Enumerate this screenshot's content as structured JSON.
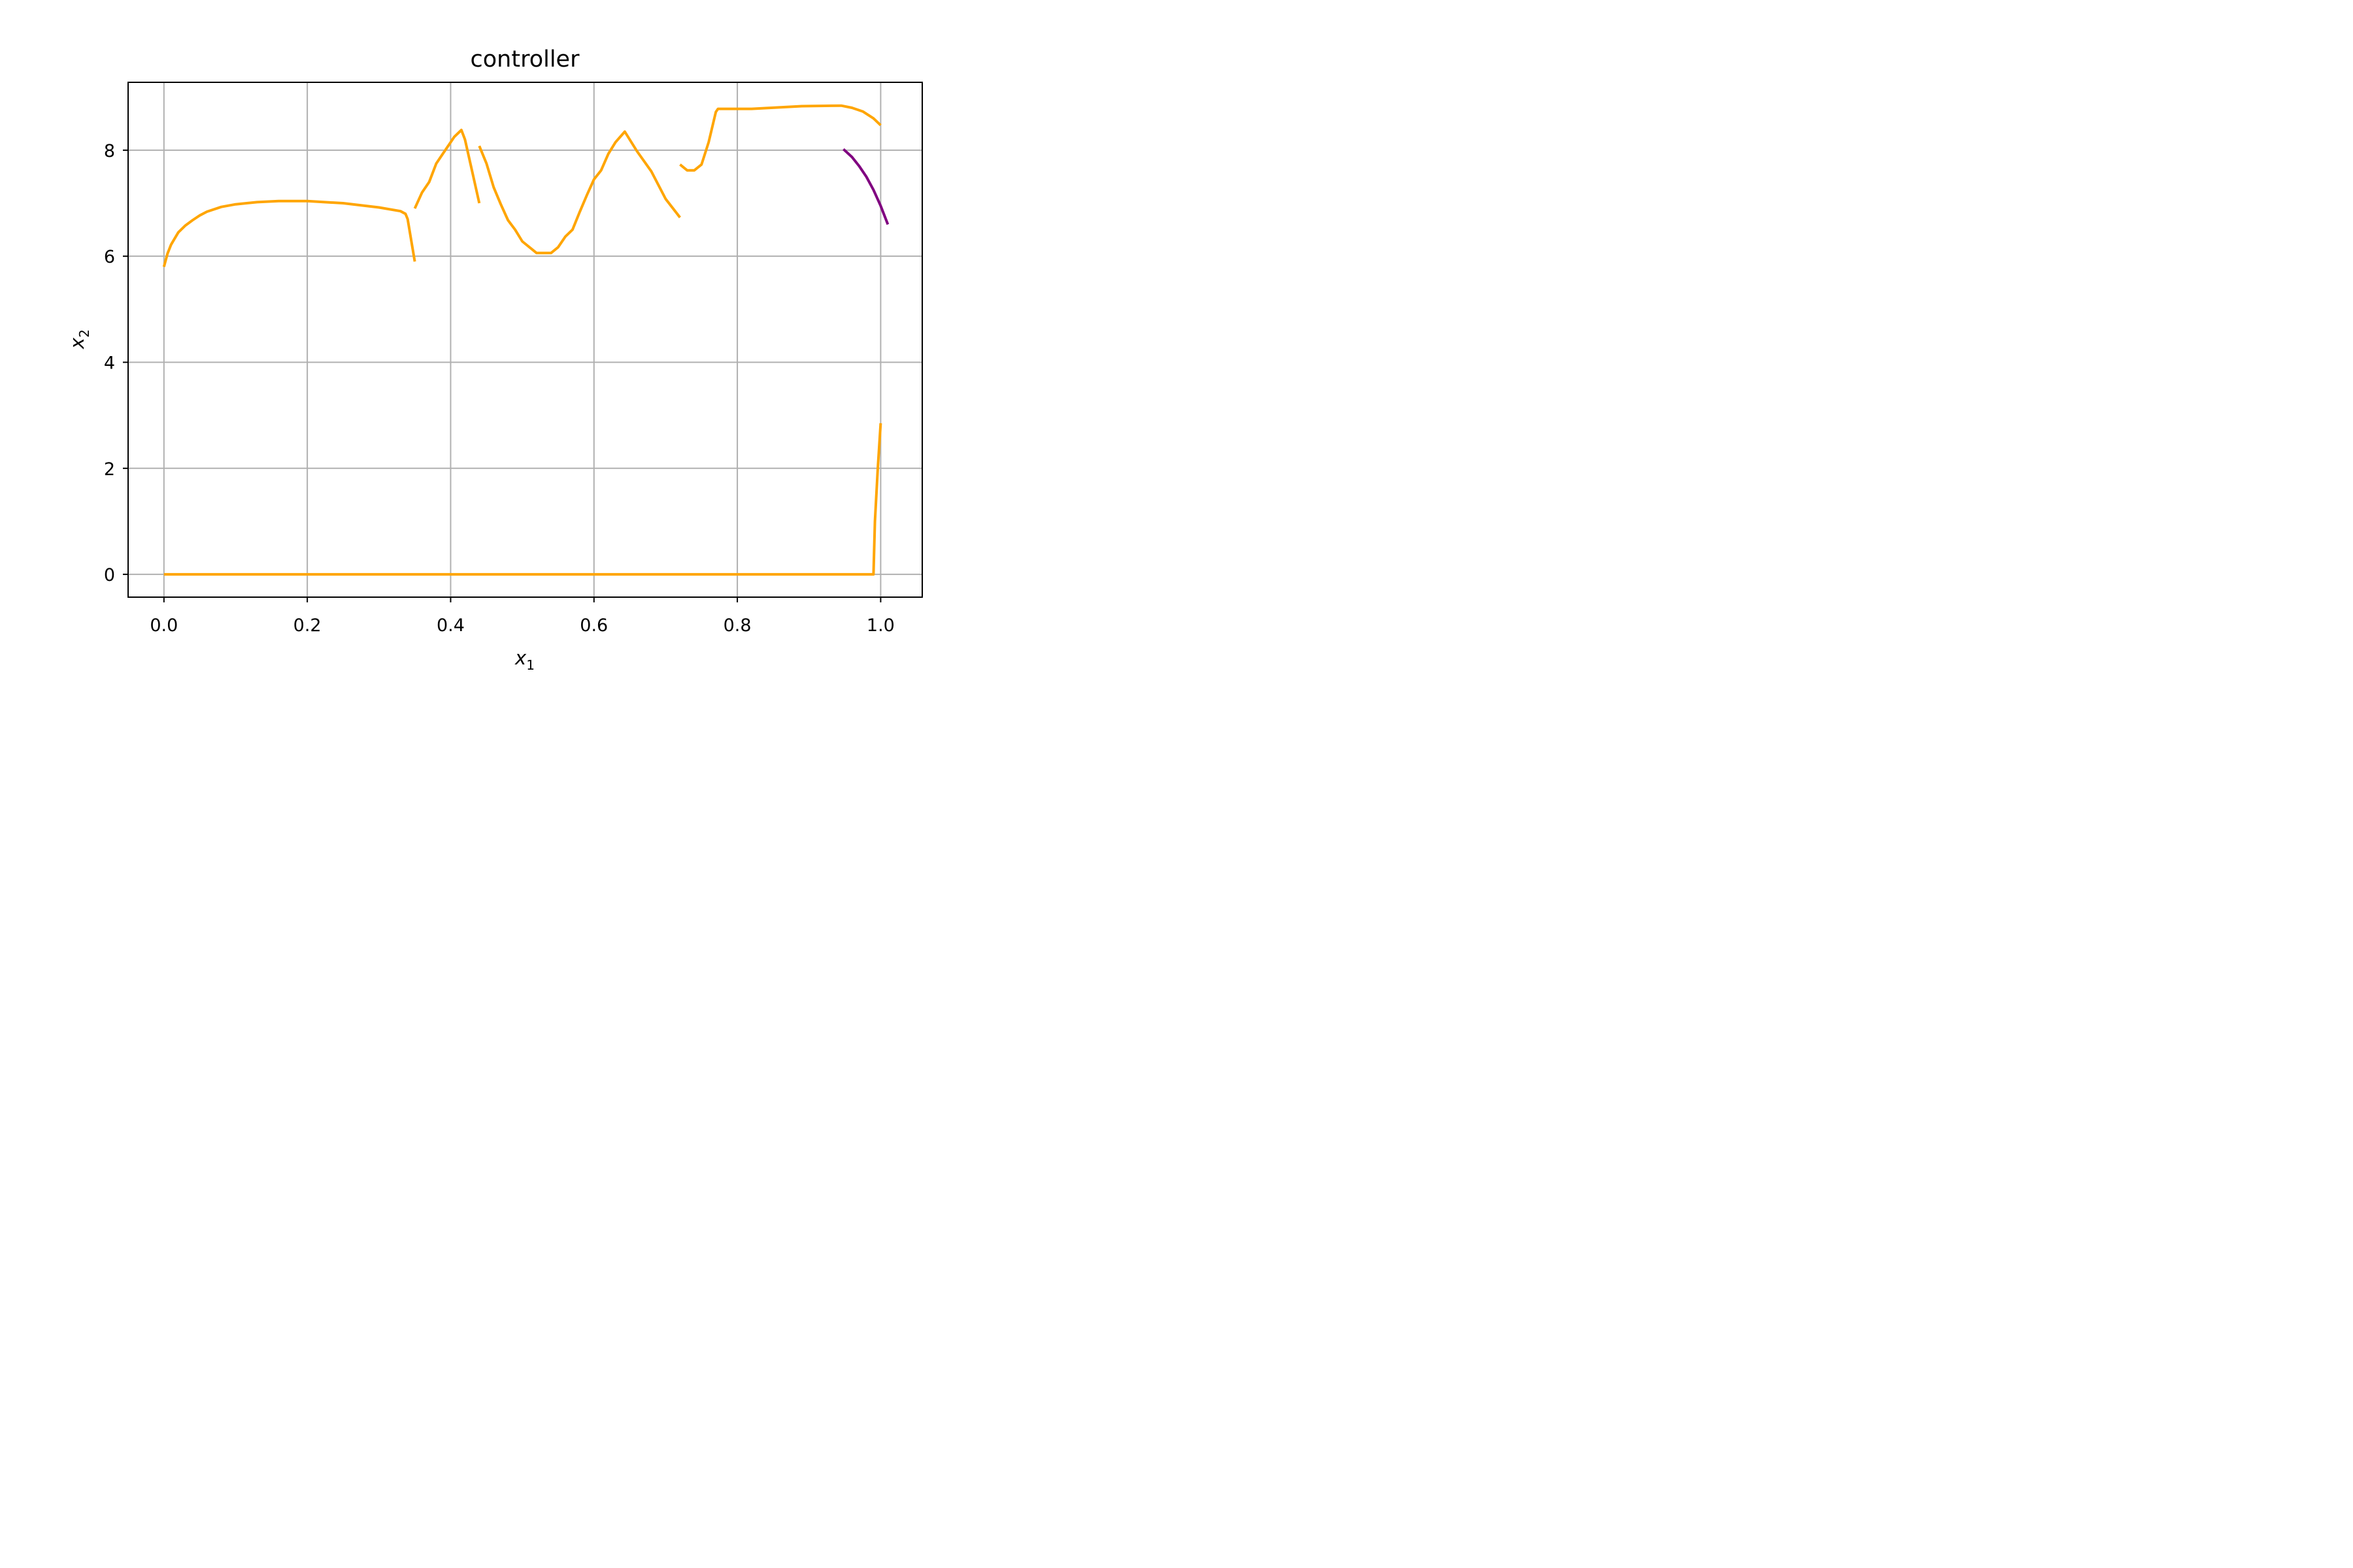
{
  "chart_data": {
    "type": "line",
    "title": "controller",
    "xlabel": {
      "base": "x",
      "sub": "1"
    },
    "ylabel": {
      "base": "x",
      "sub": "2"
    },
    "xlim": [
      -0.05,
      1.058
    ],
    "ylim": [
      -0.43,
      9.28
    ],
    "xticks": [
      0.0,
      0.2,
      0.4,
      0.6,
      0.8,
      1.0
    ],
    "xtick_labels": [
      "0.0",
      "0.2",
      "0.4",
      "0.6",
      "0.8",
      "1.0"
    ],
    "yticks": [
      0,
      2,
      4,
      6,
      8
    ],
    "ytick_labels": [
      "0",
      "2",
      "4",
      "6",
      "8"
    ],
    "grid": true,
    "legend": "none",
    "colors": {
      "orange": "#FFA500",
      "purple": "#800080",
      "grid": "#b0b0b0"
    },
    "series": [
      {
        "color": "#FFA500",
        "x": [
          0.0,
          0.005,
          0.01,
          0.02,
          0.03,
          0.04,
          0.05,
          0.06,
          0.08,
          0.1,
          0.13,
          0.16,
          0.2,
          0.25,
          0.3,
          0.33,
          0.337,
          0.34,
          0.35
        ],
        "y": [
          5.8,
          6.05,
          6.22,
          6.45,
          6.58,
          6.68,
          6.77,
          6.84,
          6.93,
          6.98,
          7.02,
          7.04,
          7.04,
          7.0,
          6.92,
          6.85,
          6.8,
          6.7,
          5.9
        ]
      },
      {
        "color": "#FFA500",
        "x": [
          0.35,
          0.36,
          0.37,
          0.38,
          0.39,
          0.4,
          0.405,
          0.415,
          0.42,
          0.43,
          0.44
        ],
        "y": [
          6.9,
          7.2,
          7.4,
          7.75,
          7.95,
          8.15,
          8.25,
          8.38,
          8.2,
          7.6,
          7.0
        ]
      },
      {
        "color": "#FFA500",
        "x": [
          0.44,
          0.45,
          0.46,
          0.47,
          0.48,
          0.49,
          0.5,
          0.51,
          0.52,
          0.54,
          0.55,
          0.56,
          0.57,
          0.58,
          0.59,
          0.6,
          0.61,
          0.62,
          0.63,
          0.643,
          0.66,
          0.68,
          0.7,
          0.72
        ],
        "y": [
          8.08,
          7.75,
          7.3,
          6.98,
          6.68,
          6.5,
          6.28,
          6.17,
          6.06,
          6.06,
          6.17,
          6.37,
          6.5,
          6.83,
          7.15,
          7.45,
          7.62,
          7.93,
          8.15,
          8.35,
          7.98,
          7.6,
          7.08,
          6.73
        ]
      },
      {
        "color": "#FFA500",
        "x": [
          0.72,
          0.73,
          0.74,
          0.75,
          0.76,
          0.77,
          0.773,
          0.82,
          0.89,
          0.945,
          0.96,
          0.975,
          0.99,
          1.0
        ],
        "y": [
          7.73,
          7.62,
          7.62,
          7.73,
          8.15,
          8.72,
          8.78,
          8.78,
          8.83,
          8.84,
          8.8,
          8.73,
          8.6,
          8.47
        ]
      },
      {
        "color": "#FFA500",
        "x": [
          0.0,
          0.99,
          0.992,
          0.996,
          1.0
        ],
        "y": [
          0.0,
          0.0,
          1.0,
          2.0,
          2.85
        ]
      },
      {
        "color": "#800080",
        "x": [
          0.948,
          0.96,
          0.97,
          0.98,
          0.99,
          1.0,
          1.01
        ],
        "y": [
          8.02,
          7.87,
          7.7,
          7.5,
          7.25,
          6.95,
          6.6
        ]
      }
    ]
  }
}
